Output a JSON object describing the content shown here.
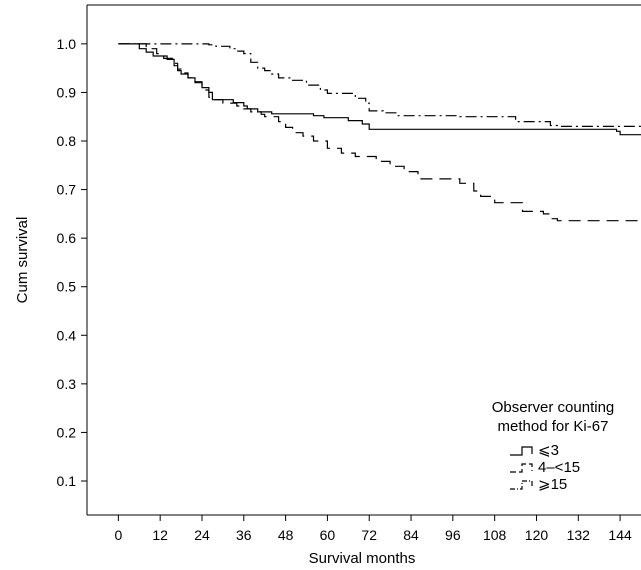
{
  "chart_data": {
    "type": "line",
    "step": true,
    "title": "",
    "xlabel": "Survival months",
    "ylabel": "Cum survival",
    "xlim": [
      -9,
      150
    ],
    "ylim": [
      0.03,
      1.08
    ],
    "xticks": [
      0,
      12,
      24,
      36,
      48,
      60,
      72,
      84,
      96,
      108,
      120,
      132,
      144
    ],
    "yticks": [
      0.1,
      0.2,
      0.3,
      0.4,
      0.5,
      0.6,
      0.7,
      0.8,
      0.9,
      1.0
    ],
    "xtick_labels": [
      "0",
      "12",
      "24",
      "36",
      "48",
      "60",
      "72",
      "84",
      "96",
      "108",
      "120",
      "132",
      "144"
    ],
    "ytick_labels": [
      "0.1",
      "0.2",
      "0.3",
      "0.4",
      "0.5",
      "0.6",
      "0.7",
      "0.8",
      "0.9",
      "1.0"
    ],
    "grid": false,
    "legend": {
      "title_lines": [
        "Observer counting",
        "method for Ki-67"
      ],
      "placement": "bottom-right",
      "entries": [
        "⩽3",
        "4–<15",
        "⩾15"
      ]
    },
    "series": [
      {
        "name": "⩽3",
        "dash": "solid",
        "color": "#000000",
        "points": [
          [
            0,
            1.0
          ],
          [
            6,
            0.99
          ],
          [
            8,
            0.983
          ],
          [
            10,
            0.975
          ],
          [
            14,
            0.968
          ],
          [
            16,
            0.955
          ],
          [
            17,
            0.945
          ],
          [
            18,
            0.938
          ],
          [
            20,
            0.93
          ],
          [
            22,
            0.92
          ],
          [
            24,
            0.91
          ],
          [
            26,
            0.9
          ],
          [
            27,
            0.885
          ],
          [
            33,
            0.879
          ],
          [
            36,
            0.872
          ],
          [
            37,
            0.866
          ],
          [
            40,
            0.86
          ],
          [
            44,
            0.856
          ],
          [
            56,
            0.852
          ],
          [
            59,
            0.848
          ],
          [
            66,
            0.842
          ],
          [
            70,
            0.835
          ],
          [
            72,
            0.824
          ],
          [
            143,
            0.82
          ],
          [
            144,
            0.813
          ],
          [
            150,
            0.813
          ]
        ]
      },
      {
        "name": "4–<15",
        "dash": "long",
        "color": "#000000",
        "points": [
          [
            0,
            1.0
          ],
          [
            8,
            0.99
          ],
          [
            11,
            0.98
          ],
          [
            13,
            0.97
          ],
          [
            16,
            0.96
          ],
          [
            17,
            0.948
          ],
          [
            18,
            0.94
          ],
          [
            20,
            0.93
          ],
          [
            22,
            0.922
          ],
          [
            24,
            0.905
          ],
          [
            26,
            0.89
          ],
          [
            27,
            0.885
          ],
          [
            30,
            0.878
          ],
          [
            34,
            0.872
          ],
          [
            36,
            0.866
          ],
          [
            38,
            0.86
          ],
          [
            41,
            0.855
          ],
          [
            42,
            0.85
          ],
          [
            46,
            0.84
          ],
          [
            48,
            0.828
          ],
          [
            50,
            0.817
          ],
          [
            53,
            0.81
          ],
          [
            56,
            0.8
          ],
          [
            60,
            0.785
          ],
          [
            64,
            0.775
          ],
          [
            68,
            0.768
          ],
          [
            74,
            0.758
          ],
          [
            78,
            0.748
          ],
          [
            82,
            0.737
          ],
          [
            86,
            0.722
          ],
          [
            98,
            0.713
          ],
          [
            102,
            0.697
          ],
          [
            104,
            0.686
          ],
          [
            108,
            0.673
          ],
          [
            116,
            0.655
          ],
          [
            122,
            0.65
          ],
          [
            124,
            0.64
          ],
          [
            126,
            0.636
          ],
          [
            150,
            0.636
          ]
        ]
      },
      {
        "name": "⩾15",
        "dash": "dashdot",
        "color": "#000000",
        "points": [
          [
            0,
            1.0
          ],
          [
            26,
            0.998
          ],
          [
            28,
            0.995
          ],
          [
            32,
            0.99
          ],
          [
            34,
            0.985
          ],
          [
            36,
            0.98
          ],
          [
            38,
            0.962
          ],
          [
            40,
            0.95
          ],
          [
            42,
            0.945
          ],
          [
            44,
            0.938
          ],
          [
            46,
            0.93
          ],
          [
            50,
            0.925
          ],
          [
            54,
            0.915
          ],
          [
            58,
            0.905
          ],
          [
            60,
            0.898
          ],
          [
            68,
            0.888
          ],
          [
            71,
            0.878
          ],
          [
            72,
            0.862
          ],
          [
            76,
            0.858
          ],
          [
            80,
            0.852
          ],
          [
            98,
            0.85
          ],
          [
            114,
            0.84
          ],
          [
            124,
            0.832
          ],
          [
            126,
            0.83
          ],
          [
            150,
            0.83
          ]
        ]
      }
    ]
  }
}
